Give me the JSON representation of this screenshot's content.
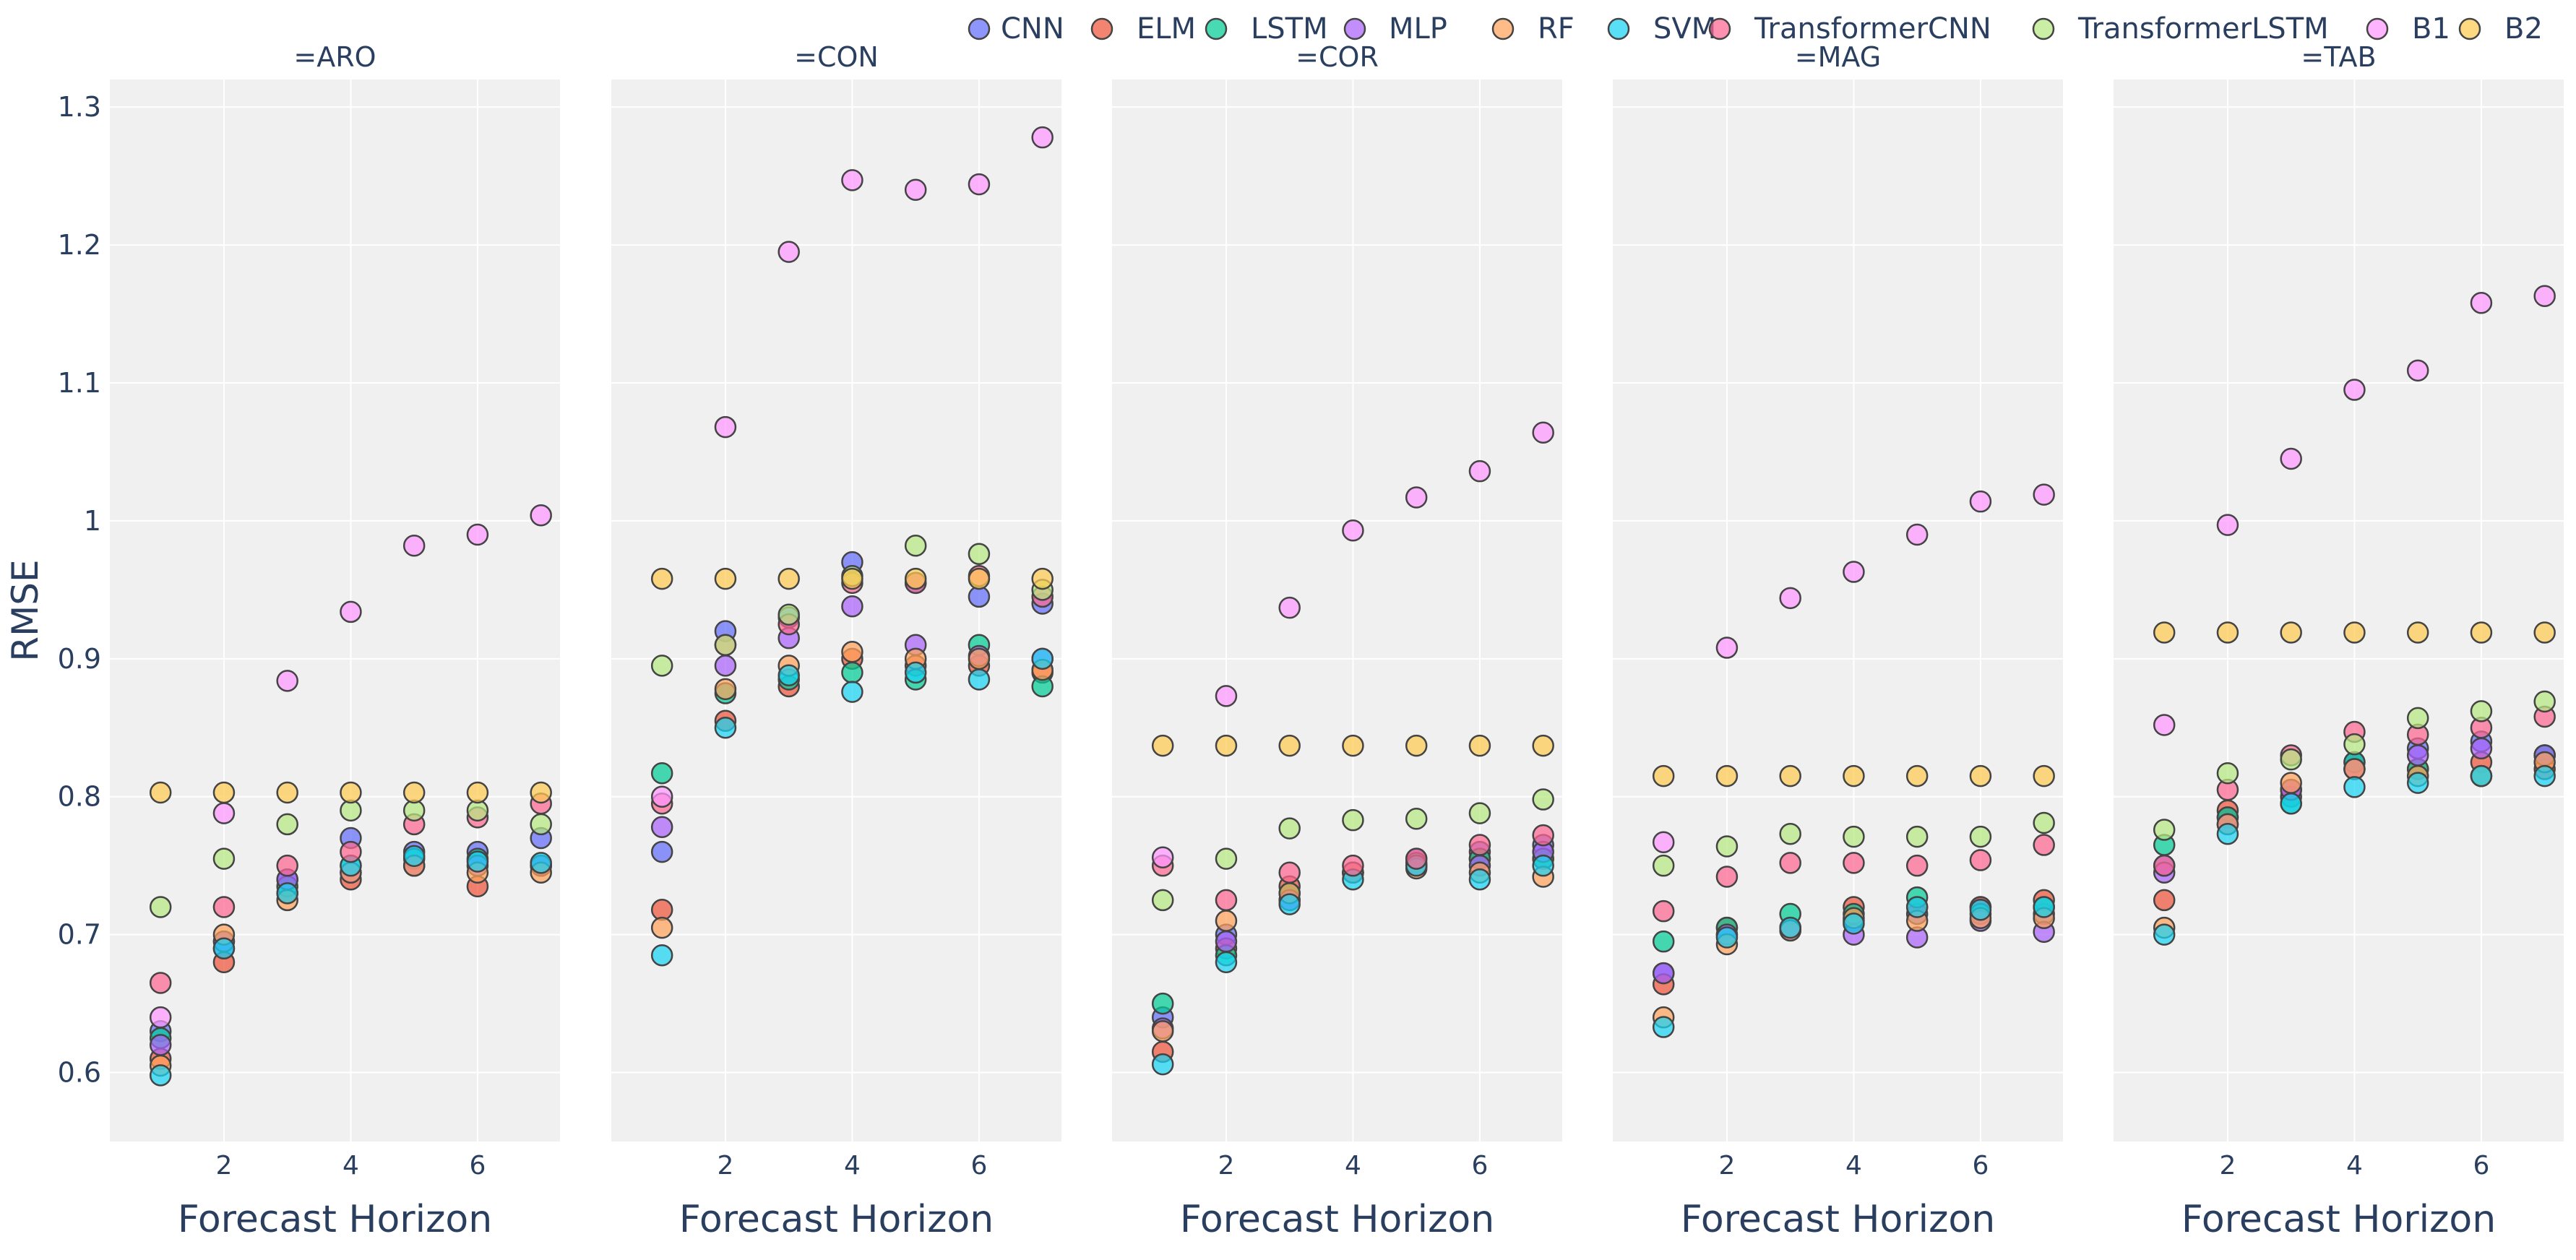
{
  "chart_data": {
    "type": "scatter",
    "ylabel": "RMSE",
    "xlabel": "Forecast Horizon",
    "ylim": [
      0.55,
      1.32
    ],
    "xlim": [
      0.2,
      7.3
    ],
    "x_ticks": [
      2,
      4,
      6
    ],
    "y_ticks": [
      0.6,
      0.7,
      0.8,
      0.9,
      1,
      1.1,
      1.2,
      1.3
    ],
    "y_tick_labels": [
      "0.6",
      "0.7",
      "0.8",
      "0.9",
      "1",
      "1.1",
      "1.2",
      "1.3"
    ],
    "grid": true,
    "legend_position": "top-right",
    "x": [
      1,
      2,
      3,
      4,
      5,
      6,
      7
    ],
    "series_colors": {
      "CNN": "#636efa",
      "ELM": "#ef553b",
      "LSTM": "#00cc96",
      "MLP": "#ab63fa",
      "RF": "#ffa15a",
      "SVM": "#19d3f3",
      "TransformerCNN": "#ff6692",
      "TransformerLSTM": "#b6e880",
      "B1": "#ff97ff",
      "B2": "#fecb52"
    },
    "series_order": [
      "CNN",
      "ELM",
      "LSTM",
      "MLP",
      "RF",
      "SVM",
      "TransformerCNN",
      "TransformerLSTM",
      "B1",
      "B2"
    ],
    "panels": [
      {
        "title": "=ARO",
        "series": [
          {
            "name": "CNN",
            "values": [
              0.63,
              0.69,
              0.74,
              0.77,
              0.76,
              0.76,
              0.77
            ]
          },
          {
            "name": "ELM",
            "values": [
              0.61,
              0.68,
              0.73,
              0.74,
              0.75,
              0.735,
              0.75
            ]
          },
          {
            "name": "LSTM",
            "values": [
              0.625,
              0.695,
              0.735,
              0.75,
              0.755,
              0.755,
              0.75
            ]
          },
          {
            "name": "MLP",
            "values": [
              0.62,
              0.695,
              0.74,
              0.745,
              0.75,
              0.75,
              0.75
            ]
          },
          {
            "name": "RF",
            "values": [
              0.605,
              0.7,
              0.725,
              0.745,
              0.75,
              0.745,
              0.745
            ]
          },
          {
            "name": "SVM",
            "values": [
              0.598,
              0.69,
              0.73,
              0.75,
              0.757,
              0.753,
              0.752
            ]
          },
          {
            "name": "TransformerCNN",
            "values": [
              0.665,
              0.72,
              0.75,
              0.76,
              0.78,
              0.785,
              0.795
            ]
          },
          {
            "name": "TransformerLSTM",
            "values": [
              0.72,
              0.755,
              0.78,
              0.79,
              0.79,
              0.79,
              0.78
            ]
          },
          {
            "name": "B1",
            "values": [
              0.64,
              0.788,
              0.884,
              0.934,
              0.982,
              0.99,
              1.004
            ]
          },
          {
            "name": "B2",
            "values": [
              0.803,
              0.803,
              0.803,
              0.803,
              0.803,
              0.803,
              0.803
            ]
          }
        ]
      },
      {
        "title": "=CON",
        "series": [
          {
            "name": "CNN",
            "values": [
              0.76,
              0.92,
              0.93,
              0.97,
              0.955,
              0.945,
              0.94
            ]
          },
          {
            "name": "ELM",
            "values": [
              0.718,
              0.855,
              0.88,
              0.9,
              0.895,
              0.895,
              0.89
            ]
          },
          {
            "name": "LSTM",
            "values": [
              0.817,
              0.875,
              0.885,
              0.89,
              0.885,
              0.91,
              0.88
            ]
          },
          {
            "name": "MLP",
            "values": [
              0.778,
              0.895,
              0.915,
              0.938,
              0.91,
              0.902,
              0.9
            ]
          },
          {
            "name": "RF",
            "values": [
              0.705,
              0.878,
              0.895,
              0.905,
              0.9,
              0.9,
              0.892
            ]
          },
          {
            "name": "SVM",
            "values": [
              0.685,
              0.85,
              0.888,
              0.876,
              0.89,
              0.885,
              0.9
            ]
          },
          {
            "name": "TransformerCNN",
            "values": [
              0.795,
              0.91,
              0.925,
              0.955,
              0.955,
              0.96,
              0.945
            ]
          },
          {
            "name": "TransformerLSTM",
            "values": [
              0.895,
              0.91,
              0.932,
              0.96,
              0.982,
              0.976,
              0.95
            ]
          },
          {
            "name": "B1",
            "values": [
              0.8,
              1.068,
              1.195,
              1.247,
              1.24,
              1.244,
              1.278
            ]
          },
          {
            "name": "B2",
            "values": [
              0.958,
              0.958,
              0.958,
              0.958,
              0.958,
              0.958,
              0.958
            ]
          }
        ]
      },
      {
        "title": "=COR",
        "series": [
          {
            "name": "CNN",
            "values": [
              0.64,
              0.7,
              0.725,
              0.745,
              0.755,
              0.76,
              0.765
            ]
          },
          {
            "name": "ELM",
            "values": [
              0.615,
              0.69,
              0.735,
              0.745,
              0.75,
              0.755,
              0.755
            ]
          },
          {
            "name": "LSTM",
            "values": [
              0.65,
              0.685,
              0.73,
              0.745,
              0.752,
              0.755,
              0.755
            ]
          },
          {
            "name": "MLP",
            "values": [
              0.632,
              0.695,
              0.725,
              0.745,
              0.75,
              0.75,
              0.76
            ]
          },
          {
            "name": "RF",
            "values": [
              0.63,
              0.71,
              0.73,
              0.745,
              0.748,
              0.745,
              0.742
            ]
          },
          {
            "name": "SVM",
            "values": [
              0.606,
              0.68,
              0.722,
              0.74,
              0.75,
              0.74,
              0.75
            ]
          },
          {
            "name": "TransformerCNN",
            "values": [
              0.75,
              0.725,
              0.745,
              0.75,
              0.755,
              0.765,
              0.772
            ]
          },
          {
            "name": "TransformerLSTM",
            "values": [
              0.725,
              0.755,
              0.777,
              0.783,
              0.784,
              0.788,
              0.798
            ]
          },
          {
            "name": "B1",
            "values": [
              0.756,
              0.873,
              0.937,
              0.993,
              1.017,
              1.036,
              1.064
            ]
          },
          {
            "name": "B2",
            "values": [
              0.837,
              0.837,
              0.837,
              0.837,
              0.837,
              0.837,
              0.837
            ]
          }
        ]
      },
      {
        "title": "=MAG",
        "series": [
          {
            "name": "CNN",
            "values": [
              0.672,
              0.7,
              0.705,
              0.71,
              0.715,
              0.72,
              0.715
            ]
          },
          {
            "name": "ELM",
            "values": [
              0.664,
              0.705,
              0.705,
              0.72,
              0.72,
              0.72,
              0.725
            ]
          },
          {
            "name": "LSTM",
            "values": [
              0.695,
              0.705,
              0.715,
              0.715,
              0.727,
              0.715,
              0.72
            ]
          },
          {
            "name": "MLP",
            "values": [
              0.672,
              0.7,
              0.703,
              0.7,
              0.698,
              0.71,
              0.702
            ]
          },
          {
            "name": "RF",
            "values": [
              0.64,
              0.693,
              0.703,
              0.712,
              0.71,
              0.712,
              0.712
            ]
          },
          {
            "name": "SVM",
            "values": [
              0.633,
              0.698,
              0.705,
              0.708,
              0.72,
              0.718,
              0.72
            ]
          },
          {
            "name": "TransformerCNN",
            "values": [
              0.717,
              0.742,
              0.752,
              0.752,
              0.75,
              0.754,
              0.765
            ]
          },
          {
            "name": "TransformerLSTM",
            "values": [
              0.75,
              0.764,
              0.773,
              0.771,
              0.771,
              0.771,
              0.781
            ]
          },
          {
            "name": "B1",
            "values": [
              0.767,
              0.908,
              0.944,
              0.963,
              0.99,
              1.014,
              1.019
            ]
          },
          {
            "name": "B2",
            "values": [
              0.815,
              0.815,
              0.815,
              0.815,
              0.815,
              0.815,
              0.815
            ]
          }
        ]
      },
      {
        "title": "=TAB",
        "series": [
          {
            "name": "CNN",
            "values": [
              0.75,
              0.785,
              0.8,
              0.825,
              0.835,
              0.84,
              0.83
            ]
          },
          {
            "name": "ELM",
            "values": [
              0.725,
              0.79,
              0.805,
              0.82,
              0.82,
              0.825,
              0.82
            ]
          },
          {
            "name": "LSTM",
            "values": [
              0.765,
              0.785,
              0.795,
              0.825,
              0.82,
              0.815,
              0.83
            ]
          },
          {
            "name": "MLP",
            "values": [
              0.745,
              0.78,
              0.805,
              0.82,
              0.83,
              0.835,
              0.83
            ]
          },
          {
            "name": "RF",
            "values": [
              0.705,
              0.78,
              0.81,
              0.82,
              0.815,
              0.815,
              0.825
            ]
          },
          {
            "name": "SVM",
            "values": [
              0.7,
              0.773,
              0.795,
              0.807,
              0.81,
              0.815,
              0.815
            ]
          },
          {
            "name": "TransformerCNN",
            "values": [
              0.75,
              0.805,
              0.83,
              0.847,
              0.845,
              0.85,
              0.858
            ]
          },
          {
            "name": "TransformerLSTM",
            "values": [
              0.776,
              0.817,
              0.827,
              0.838,
              0.857,
              0.862,
              0.869
            ]
          },
          {
            "name": "B1",
            "values": [
              0.852,
              0.997,
              1.045,
              1.095,
              1.109,
              1.158,
              1.163
            ]
          },
          {
            "name": "B2",
            "values": [
              0.919,
              0.919,
              0.919,
              0.919,
              0.919,
              0.919,
              0.919
            ]
          }
        ]
      }
    ]
  }
}
